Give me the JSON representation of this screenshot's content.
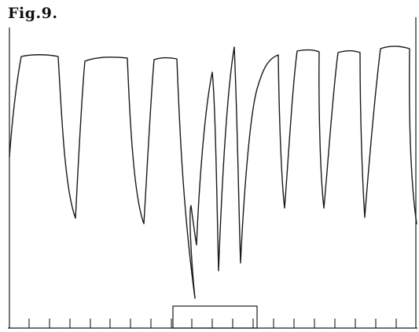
{
  "figure": {
    "label": "Fig.9."
  },
  "colors": {
    "ink": "#1a1a1a",
    "paper": "#ffffff"
  }
}
